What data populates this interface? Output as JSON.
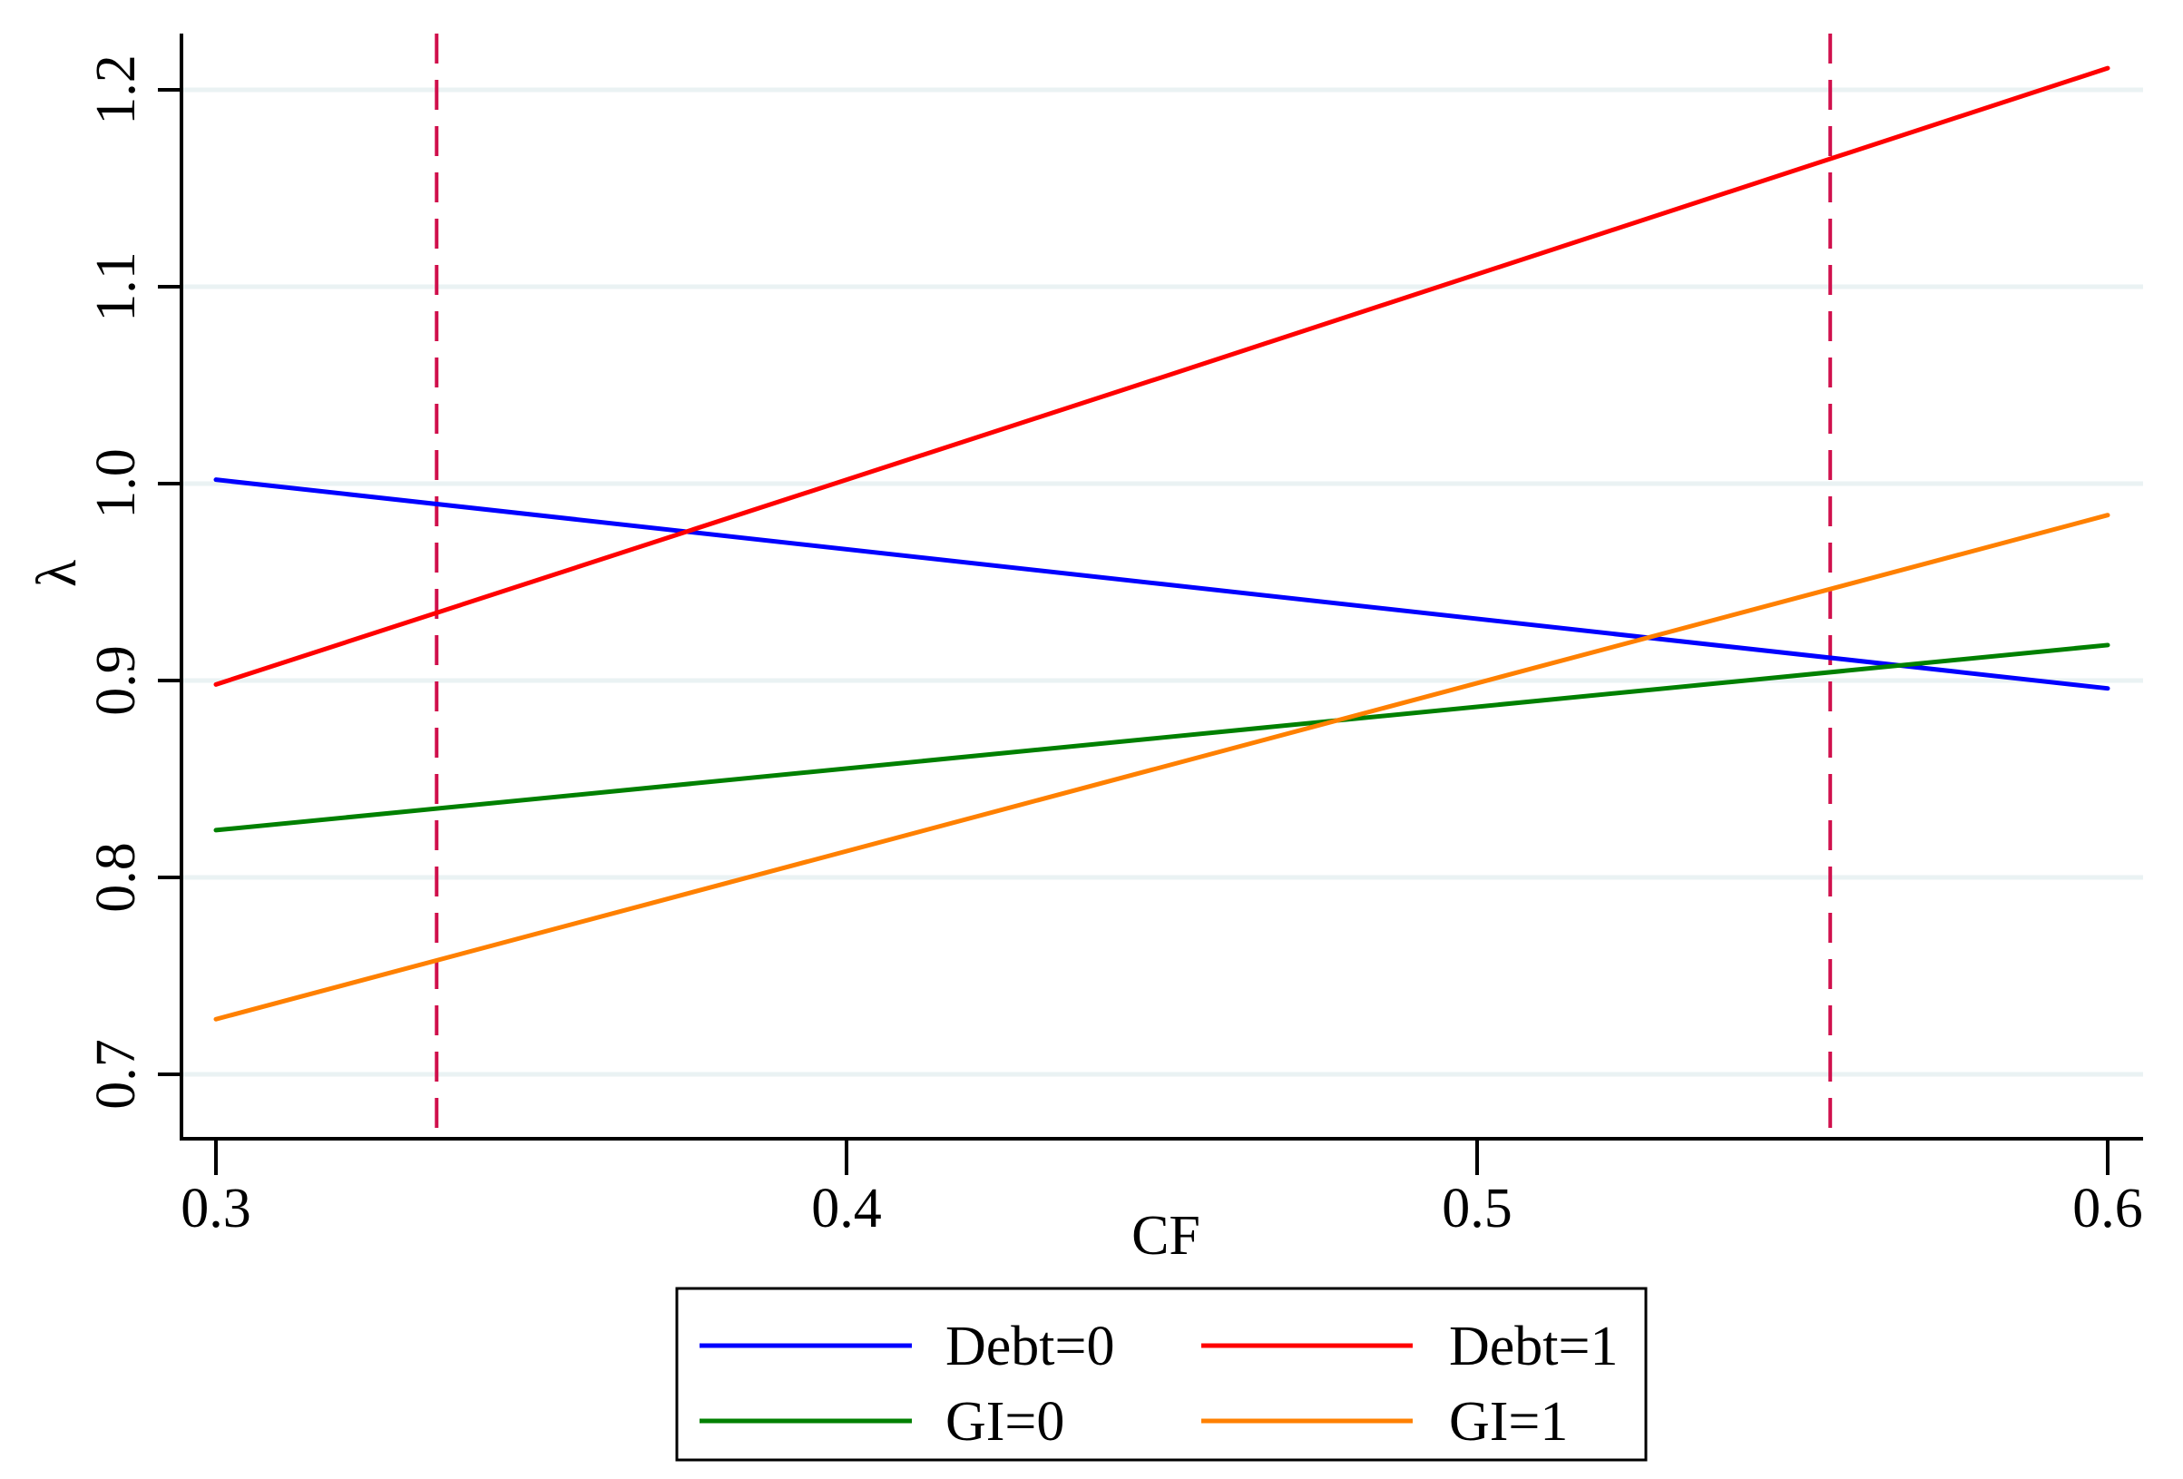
{
  "chart_data": {
    "type": "line",
    "title": "",
    "xlabel": "CF",
    "ylabel": "λ",
    "xlim": [
      0.3,
      0.6
    ],
    "ylim": [
      0.7,
      1.2
    ],
    "x_ticks": [
      "0.3",
      "0.4",
      "0.5",
      "0.6"
    ],
    "y_ticks": [
      "0.7",
      "0.8",
      "0.9",
      "1.0",
      "1.1",
      "1.2"
    ],
    "grid": "horizontal",
    "legend_position": "bottom",
    "x": [
      0.3,
      0.45,
      0.6
    ],
    "series": [
      {
        "name": "Debt=0",
        "color": "#0000ff",
        "values": [
          1.002,
          0.949,
          0.896
        ]
      },
      {
        "name": "Debt=1",
        "color": "#ff0000",
        "values": [
          0.898,
          1.054,
          1.211
        ]
      },
      {
        "name": "GI=0",
        "color": "#008000",
        "values": [
          0.824,
          0.871,
          0.918
        ]
      },
      {
        "name": "GI=1",
        "color": "#ff8000",
        "values": [
          0.728,
          0.856,
          0.984
        ]
      }
    ],
    "reference_lines": [
      {
        "orientation": "vertical",
        "x": 0.335,
        "style": "dashed",
        "color": "#d0104c"
      },
      {
        "orientation": "vertical",
        "x": 0.556,
        "style": "dashed",
        "color": "#d0104c"
      }
    ]
  },
  "legend": {
    "items": [
      {
        "label": "Debt=0",
        "color": "#0000ff"
      },
      {
        "label": "Debt=1",
        "color": "#ff0000"
      },
      {
        "label": "GI=0",
        "color": "#008000"
      },
      {
        "label": "GI=1",
        "color": "#ff8000"
      }
    ]
  }
}
